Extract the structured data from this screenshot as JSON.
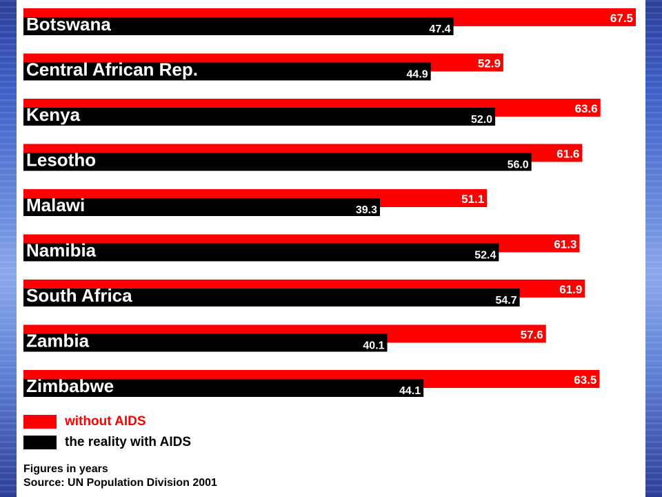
{
  "colors": {
    "without_aids": "#ff0000",
    "with_aids": "#000000",
    "value_text": "#ffffff"
  },
  "legend": {
    "without_aids_label": "without AIDS",
    "with_aids_label": "the reality with AIDS"
  },
  "footer": {
    "units_note": "Figures in years",
    "source": "Source: UN Population Division 2001"
  },
  "chart_data": {
    "type": "bar",
    "orientation": "horizontal",
    "categories": [
      "Botswana",
      "Central African Rep.",
      "Kenya",
      "Lesotho",
      "Malawi",
      "Namibia",
      "South Africa",
      "Zambia",
      "Zimbabwe"
    ],
    "series": [
      {
        "name": "without AIDS",
        "values": [
          67.5,
          52.9,
          63.6,
          61.6,
          51.1,
          61.3,
          61.9,
          57.6,
          63.5
        ]
      },
      {
        "name": "the reality with AIDS",
        "values": [
          47.4,
          44.9,
          52.0,
          56.0,
          39.3,
          52.4,
          54.7,
          40.1,
          44.1
        ]
      }
    ],
    "value_labels": {
      "without AIDS": [
        "67.5",
        "52.9",
        "63.6",
        "61.6",
        "51.1",
        "61.3",
        "61.9",
        "57.6",
        "63.5"
      ],
      "the reality with AIDS": [
        "47.4",
        "44.9",
        "52.0",
        "56.0",
        "39.3",
        "52.4",
        "54.7",
        "40.1",
        "44.1"
      ]
    },
    "xlim": [
      0,
      67.5
    ],
    "grid": false,
    "legend_position": "bottom-left"
  }
}
